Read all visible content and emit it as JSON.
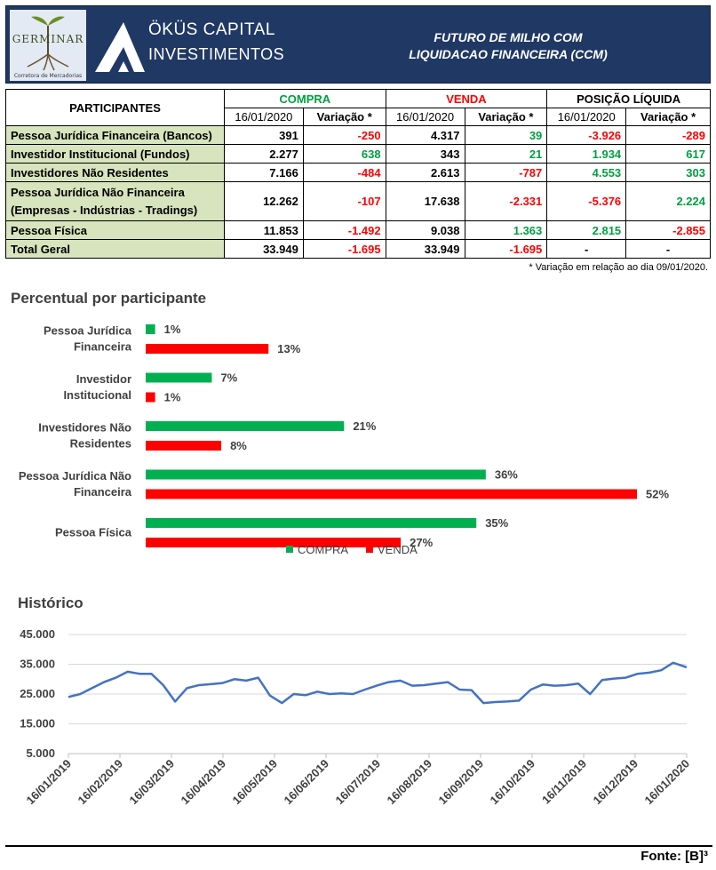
{
  "header": {
    "logo_text": "GERMINAR",
    "logo_subtitle": "Corretora de Mercadorias",
    "brand_line1": "ÖKÜS CAPITAL",
    "brand_line2": "INVESTIMENTOS",
    "contract_line1": "FUTURO DE MILHO COM",
    "contract_line2": "LIQUIDACAO FINANCEIRA (CCM)"
  },
  "table": {
    "participants_header": "PARTICIPANTES",
    "groups": [
      "COMPRA",
      "VENDA",
      "POSIÇÃO LÍQUIDA"
    ],
    "date_label": "16/01/2020",
    "variation_label": "Variação *",
    "rows": [
      {
        "label": "Pessoa Jurídica Financeira (Bancos)",
        "compra": "391",
        "compra_var": "-250",
        "venda": "4.317",
        "venda_var": "39",
        "pos": "-3.926",
        "pos_var": "-289"
      },
      {
        "label": "Investidor Institucional (Fundos)",
        "compra": "2.277",
        "compra_var": "638",
        "venda": "343",
        "venda_var": "21",
        "pos": "1.934",
        "pos_var": "617"
      },
      {
        "label": "Investidores Não Residentes",
        "compra": "7.166",
        "compra_var": "-484",
        "venda": "2.613",
        "venda_var": "-787",
        "pos": "4.553",
        "pos_var": "303"
      },
      {
        "label": "Pessoa Jurídica Não Financeira",
        "label2": "(Empresas - Indústrias - Tradings)",
        "compra": "12.262",
        "compra_var": "-107",
        "venda": "17.638",
        "venda_var": "-2.331",
        "pos": "-5.376",
        "pos_var": "2.224"
      },
      {
        "label": "Pessoa Física",
        "compra": "11.853",
        "compra_var": "-1.492",
        "venda": "9.038",
        "venda_var": "1.363",
        "pos": "2.815",
        "pos_var": "-2.855"
      }
    ],
    "total": {
      "label": "Total Geral",
      "compra": "33.949",
      "compra_var": "-1.695",
      "venda": "33.949",
      "venda_var": "-1.695",
      "pos": "-",
      "pos_var": "-"
    },
    "footnote": "* Variação em relação ao dia 09/01/2020."
  },
  "chart_data": [
    {
      "type": "bar",
      "orientation": "horizontal",
      "title": "Percentual por participante",
      "categories": [
        [
          "Pessoa Jurídica",
          "Financeira"
        ],
        [
          "Investidor",
          "Institucional"
        ],
        [
          "Investidores Não",
          "Residentes"
        ],
        [
          "Pessoa Jurídica Não",
          "Financeira"
        ],
        [
          "Pessoa Física"
        ]
      ],
      "series": [
        {
          "name": "COMPRA",
          "values": [
            1,
            7,
            21,
            36,
            35
          ],
          "labels": [
            "1%",
            "7%",
            "21%",
            "36%",
            "35%"
          ],
          "color": "#00b050"
        },
        {
          "name": "VENDA",
          "values": [
            13,
            1,
            8,
            52,
            27
          ],
          "labels": [
            "13%",
            "1%",
            "8%",
            "52%",
            "27%"
          ],
          "color": "#ff0000"
        }
      ],
      "xlim": [
        0,
        52
      ],
      "legend": "bottom"
    },
    {
      "type": "line",
      "title": "Histórico",
      "series_color": "#4472c4",
      "ylim": [
        5000,
        45000
      ],
      "yticks": [
        5000,
        15000,
        25000,
        35000,
        45000
      ],
      "ytick_labels": [
        "5.000",
        "15.000",
        "25.000",
        "35.000",
        "45.000"
      ],
      "xtick_labels": [
        "16/01/2019",
        "16/02/2019",
        "16/03/2019",
        "16/04/2019",
        "16/05/2019",
        "16/06/2019",
        "16/07/2019",
        "16/08/2019",
        "16/09/2019",
        "16/10/2019",
        "16/11/2019",
        "16/12/2019",
        "16/01/2020"
      ],
      "x": [
        "2019-01-16",
        "2019-01-23",
        "2019-01-30",
        "2019-02-06",
        "2019-02-13",
        "2019-02-20",
        "2019-02-27",
        "2019-03-06",
        "2019-03-13",
        "2019-03-20",
        "2019-03-27",
        "2019-04-03",
        "2019-04-10",
        "2019-04-17",
        "2019-04-24",
        "2019-05-01",
        "2019-05-08",
        "2019-05-15",
        "2019-05-22",
        "2019-05-29",
        "2019-06-05",
        "2019-06-12",
        "2019-06-19",
        "2019-06-26",
        "2019-07-03",
        "2019-07-10",
        "2019-07-17",
        "2019-07-24",
        "2019-07-31",
        "2019-08-07",
        "2019-08-14",
        "2019-08-21",
        "2019-08-28",
        "2019-09-04",
        "2019-09-11",
        "2019-09-18",
        "2019-09-25",
        "2019-10-02",
        "2019-10-09",
        "2019-10-16",
        "2019-10-23",
        "2019-10-30",
        "2019-11-06",
        "2019-11-13",
        "2019-11-20",
        "2019-11-27",
        "2019-12-04",
        "2019-12-11",
        "2019-12-18",
        "2019-12-25",
        "2020-01-01",
        "2020-01-08",
        "2020-01-16"
      ],
      "y": [
        24000,
        25000,
        27000,
        29000,
        30500,
        32500,
        31800,
        31800,
        28000,
        22500,
        27000,
        28000,
        28300,
        28700,
        30000,
        29500,
        30500,
        24500,
        22000,
        25000,
        24600,
        25800,
        25000,
        25200,
        25000,
        26500,
        27800,
        29000,
        29500,
        27800,
        28000,
        28500,
        29000,
        26500,
        26300,
        22000,
        22300,
        22500,
        22800,
        26500,
        28200,
        27800,
        28000,
        28500,
        25000,
        29700,
        30200,
        30500,
        31800,
        32200,
        33000,
        35500,
        34000
      ]
    }
  ],
  "legend_labels": [
    "COMPRA",
    "VENDA"
  ],
  "footer": {
    "source": "Fonte: [B]³"
  }
}
